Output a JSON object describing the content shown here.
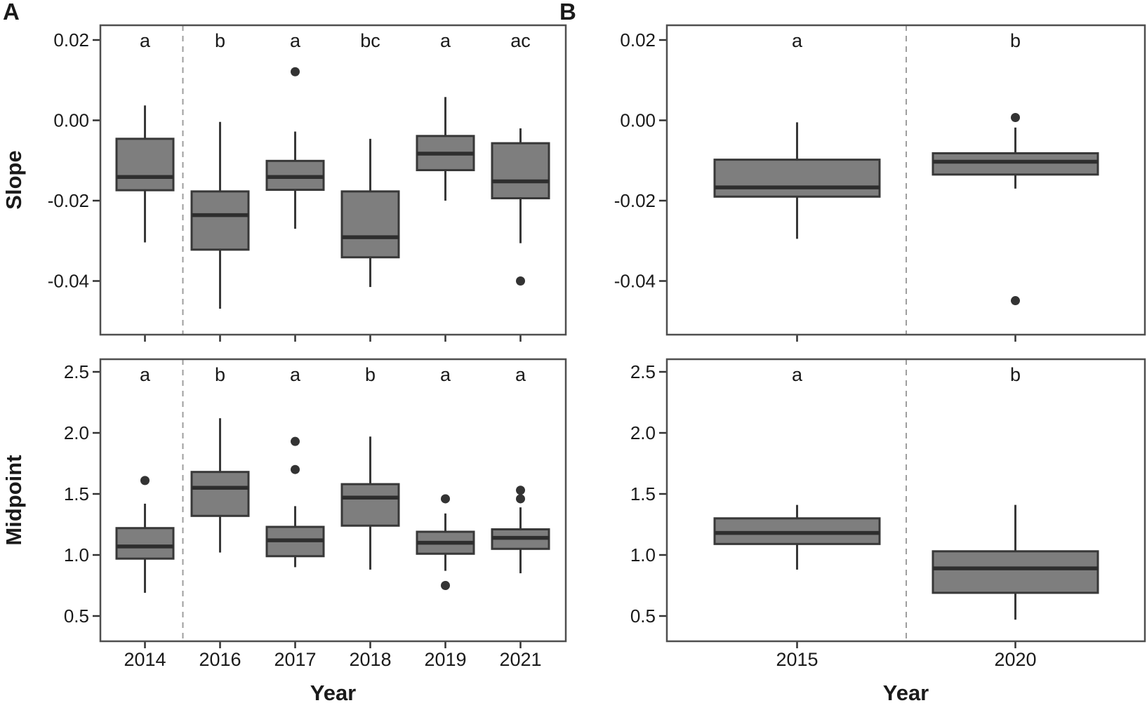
{
  "figure": {
    "panel_a_label": "A",
    "panel_b_label": "B",
    "x_axis_title_a": "Year",
    "x_axis_title_b": "Year",
    "y_axis_title_slope": "Slope",
    "y_axis_title_midpoint": "Midpoint"
  },
  "colors": {
    "background": "#ffffff",
    "box_fill": "#7e7e7e",
    "box_stroke": "#383838",
    "median_stroke": "#2e2e2e",
    "whisker_stroke": "#383838",
    "outlier_fill": "#333333",
    "panel_border": "#4f4f4f",
    "divider_stroke": "#9e9e9e",
    "tick_stroke": "#333333",
    "text": "#1a1a1a"
  },
  "chart_data": [
    {
      "id": "panel-a-slope",
      "type": "boxplot",
      "panel": "A",
      "ylabel": "Slope",
      "xlabel": "Year",
      "ylim": [
        -0.0534,
        0.0237
      ],
      "grid": false,
      "yticks": [
        {
          "value": 0.02,
          "label": "0.02"
        },
        {
          "value": 0.0,
          "label": "0.00"
        },
        {
          "value": -0.02,
          "label": "-0.02"
        },
        {
          "value": -0.04,
          "label": "-0.04"
        }
      ],
      "divider_between": [
        "2014",
        "2016"
      ],
      "groups": [
        {
          "category": "2014",
          "letter": "a",
          "whisker_low": -0.0304,
          "q1": -0.0174,
          "median": -0.0141,
          "q3": -0.0046,
          "whisker_high": 0.0037,
          "outliers": []
        },
        {
          "category": "2016",
          "letter": "b",
          "whisker_low": -0.0469,
          "q1": -0.0322,
          "median": -0.0236,
          "q3": -0.0177,
          "whisker_high": -0.0004,
          "outliers": []
        },
        {
          "category": "2017",
          "letter": "a",
          "whisker_low": -0.027,
          "q1": -0.0173,
          "median": -0.0141,
          "q3": -0.0101,
          "whisker_high": -0.0028,
          "outliers": [
            0.0121
          ]
        },
        {
          "category": "2018",
          "letter": "bc",
          "whisker_low": -0.0415,
          "q1": -0.0341,
          "median": -0.0291,
          "q3": -0.0177,
          "whisker_high": -0.0046,
          "outliers": []
        },
        {
          "category": "2019",
          "letter": "a",
          "whisker_low": -0.02,
          "q1": -0.0124,
          "median": -0.0083,
          "q3": -0.0039,
          "whisker_high": 0.0058,
          "outliers": []
        },
        {
          "category": "2021",
          "letter": "ac",
          "whisker_low": -0.0306,
          "q1": -0.0194,
          "median": -0.0152,
          "q3": -0.0057,
          "whisker_high": -0.002,
          "outliers": [
            -0.04
          ]
        }
      ]
    },
    {
      "id": "panel-a-midpoint",
      "type": "boxplot",
      "panel": "A",
      "ylabel": "Midpoint",
      "xlabel": "Year",
      "ylim": [
        0.29,
        2.6
      ],
      "grid": false,
      "yticks": [
        {
          "value": 2.5,
          "label": "2.5"
        },
        {
          "value": 2.0,
          "label": "2.0"
        },
        {
          "value": 1.5,
          "label": "1.5"
        },
        {
          "value": 1.0,
          "label": "1.0"
        },
        {
          "value": 0.5,
          "label": "0.5"
        }
      ],
      "divider_between": [
        "2014",
        "2016"
      ],
      "groups": [
        {
          "category": "2014",
          "letter": "a",
          "whisker_low": 0.69,
          "q1": 0.97,
          "median": 1.07,
          "q3": 1.22,
          "whisker_high": 1.42,
          "outliers": [
            1.61
          ]
        },
        {
          "category": "2016",
          "letter": "b",
          "whisker_low": 1.02,
          "q1": 1.32,
          "median": 1.55,
          "q3": 1.68,
          "whisker_high": 2.12,
          "outliers": []
        },
        {
          "category": "2017",
          "letter": "a",
          "whisker_low": 0.9,
          "q1": 0.99,
          "median": 1.12,
          "q3": 1.23,
          "whisker_high": 1.4,
          "outliers": [
            1.93,
            1.7
          ]
        },
        {
          "category": "2018",
          "letter": "b",
          "whisker_low": 0.88,
          "q1": 1.24,
          "median": 1.47,
          "q3": 1.58,
          "whisker_high": 1.97,
          "outliers": []
        },
        {
          "category": "2019",
          "letter": "a",
          "whisker_low": 0.87,
          "q1": 1.01,
          "median": 1.1,
          "q3": 1.19,
          "whisker_high": 1.34,
          "outliers": [
            1.46,
            0.75
          ]
        },
        {
          "category": "2021",
          "letter": "a",
          "whisker_low": 0.85,
          "q1": 1.05,
          "median": 1.14,
          "q3": 1.21,
          "whisker_high": 1.39,
          "outliers": [
            1.53,
            1.46
          ]
        }
      ]
    },
    {
      "id": "panel-b-slope",
      "type": "boxplot",
      "panel": "B",
      "ylabel": "Slope",
      "xlabel": "Year",
      "ylim": [
        -0.0534,
        0.0237
      ],
      "grid": false,
      "yticks": [
        {
          "value": 0.02,
          "label": "0.02"
        },
        {
          "value": 0.0,
          "label": "0.00"
        },
        {
          "value": -0.02,
          "label": "-0.02"
        },
        {
          "value": -0.04,
          "label": "-0.04"
        }
      ],
      "divider_between": [
        "2015",
        "2020"
      ],
      "groups": [
        {
          "category": "2015",
          "letter": "a",
          "whisker_low": -0.0295,
          "q1": -0.019,
          "median": -0.0167,
          "q3": -0.0098,
          "whisker_high": -0.0005,
          "outliers": []
        },
        {
          "category": "2020",
          "letter": "b",
          "whisker_low": -0.017,
          "q1": -0.0135,
          "median": -0.0103,
          "q3": -0.0082,
          "whisker_high": -0.0018,
          "outliers": [
            0.0007,
            -0.0449
          ]
        }
      ]
    },
    {
      "id": "panel-b-midpoint",
      "type": "boxplot",
      "panel": "B",
      "ylabel": "Midpoint",
      "xlabel": "Year",
      "ylim": [
        0.29,
        2.6
      ],
      "grid": false,
      "yticks": [
        {
          "value": 2.5,
          "label": "2.5"
        },
        {
          "value": 2.0,
          "label": "2.0"
        },
        {
          "value": 1.5,
          "label": "1.5"
        },
        {
          "value": 1.0,
          "label": "1.0"
        },
        {
          "value": 0.5,
          "label": "0.5"
        }
      ],
      "divider_between": [
        "2015",
        "2020"
      ],
      "groups": [
        {
          "category": "2015",
          "letter": "a",
          "whisker_low": 0.88,
          "q1": 1.09,
          "median": 1.18,
          "q3": 1.3,
          "whisker_high": 1.41,
          "outliers": []
        },
        {
          "category": "2020",
          "letter": "b",
          "whisker_low": 0.47,
          "q1": 0.69,
          "median": 0.89,
          "q3": 1.03,
          "whisker_high": 1.41,
          "outliers": []
        }
      ]
    }
  ]
}
